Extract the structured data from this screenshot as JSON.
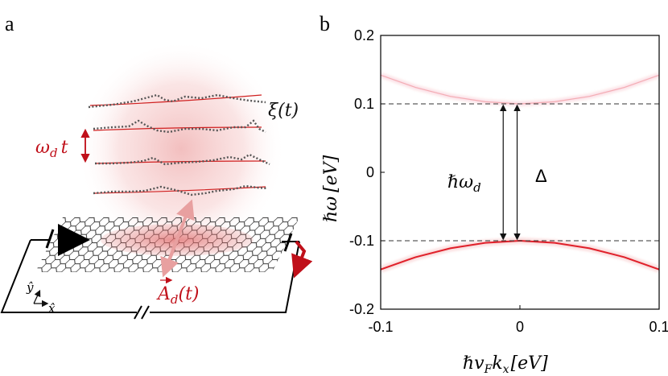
{
  "panel_a": {
    "label": "a",
    "xi_label": "ξ(t)",
    "omega_t_label": "ω",
    "omega_t_sub": "d",
    "omega_t_suffix": "t",
    "field_label": "A",
    "field_sub": "d",
    "field_suffix": "(t)",
    "axis_y": "ŷ",
    "axis_x": "x̂",
    "colors": {
      "accent": "#c0101a",
      "halo": "#e88a8a",
      "arrow_pink": "#e8a0a0",
      "dotted": "#555555"
    }
  },
  "panel_b": {
    "label": "b",
    "delta_label": "Δ",
    "hw_label_prefix": "ℏω",
    "hw_label_sub": "d",
    "colors": {
      "band": "#e0202a",
      "dashed": "#333333"
    }
  },
  "chart_data": {
    "type": "line",
    "title": "",
    "xlabel_parts": [
      "ℏv",
      "F",
      "k",
      "x",
      "[eV]"
    ],
    "ylabel_parts": [
      "ℏω",
      "[eV]"
    ],
    "xlim": [
      -0.1,
      0.1
    ],
    "ylim": [
      -0.2,
      0.2
    ],
    "xticks": [
      {
        "value": -0.1,
        "label": "-0.1"
      },
      {
        "value": 0,
        "label": "0"
      },
      {
        "value": 0.1,
        "label": "0.1"
      }
    ],
    "yticks": [
      {
        "value": 0.2,
        "label": "0.2"
      },
      {
        "value": 0.1,
        "label": "0.1"
      },
      {
        "value": 0,
        "label": "0"
      },
      {
        "value": -0.1,
        "label": "-0.1"
      },
      {
        "value": -0.2,
        "label": "-0.2"
      }
    ],
    "reference_lines": [
      {
        "y": 0.1,
        "style": "dashed"
      },
      {
        "y": -0.1,
        "style": "dashed"
      }
    ],
    "series": [
      {
        "name": "lower band (strong)",
        "x": [
          -0.1,
          -0.075,
          -0.05,
          -0.025,
          0,
          0.025,
          0.05,
          0.075,
          0.1
        ],
        "y": [
          -0.142,
          -0.124,
          -0.111,
          -0.103,
          -0.1,
          -0.103,
          -0.111,
          -0.124,
          -0.142
        ]
      },
      {
        "name": "upper band (faint)",
        "x": [
          -0.1,
          -0.075,
          -0.05,
          -0.025,
          0,
          0.025,
          0.05,
          0.075,
          0.1
        ],
        "y": [
          0.142,
          0.124,
          0.111,
          0.103,
          0.1,
          0.103,
          0.111,
          0.124,
          0.142
        ]
      }
    ]
  }
}
